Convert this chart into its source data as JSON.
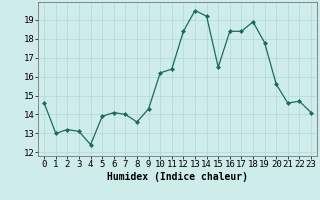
{
  "x": [
    0,
    1,
    2,
    3,
    4,
    5,
    6,
    7,
    8,
    9,
    10,
    11,
    12,
    13,
    14,
    15,
    16,
    17,
    18,
    19,
    20,
    21,
    22,
    23
  ],
  "y": [
    14.6,
    13.0,
    13.2,
    13.1,
    12.4,
    13.9,
    14.1,
    14.0,
    13.6,
    14.3,
    16.2,
    16.4,
    18.4,
    19.5,
    19.2,
    16.5,
    18.4,
    18.4,
    18.9,
    17.8,
    15.6,
    14.6,
    14.7,
    14.1
  ],
  "line_color": "#1a6b5e",
  "marker": "D",
  "marker_size": 2,
  "bg_color": "#ceecea",
  "grid_color": "#b0d8d5",
  "xlabel": "Humidex (Indice chaleur)",
  "xlim": [
    -0.5,
    23.5
  ],
  "ylim": [
    11.8,
    19.95
  ],
  "yticks": [
    12,
    13,
    14,
    15,
    16,
    17,
    18,
    19
  ],
  "xticks": [
    0,
    1,
    2,
    3,
    4,
    5,
    6,
    7,
    8,
    9,
    10,
    11,
    12,
    13,
    14,
    15,
    16,
    17,
    18,
    19,
    20,
    21,
    22,
    23
  ],
  "xtick_labels": [
    "0",
    "1",
    "2",
    "3",
    "4",
    "5",
    "6",
    "7",
    "8",
    "9",
    "10",
    "11",
    "12",
    "13",
    "14",
    "15",
    "16",
    "17",
    "18",
    "19",
    "20",
    "21",
    "22",
    "23"
  ],
  "label_fontsize": 7,
  "tick_fontsize": 6.5
}
